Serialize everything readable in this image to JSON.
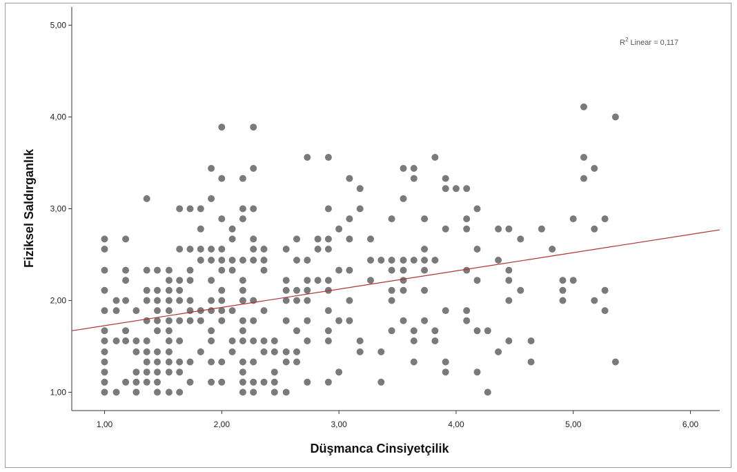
{
  "chart_data": {
    "type": "scatter",
    "title": "",
    "xlabel": "Düşmanca Cinsiyetçilik",
    "ylabel": "Fiziksel Saldırganlık",
    "xlim": [
      0.72,
      6.25
    ],
    "ylim": [
      0.8,
      5.2
    ],
    "xticks": [
      "1,00",
      "2,00",
      "3,00",
      "4,00",
      "5,00",
      "6,00"
    ],
    "yticks": [
      "1,00",
      "2,00",
      "3,00",
      "4,00",
      "5,00"
    ],
    "xtick_values": [
      1,
      2,
      3,
      4,
      5,
      6
    ],
    "ytick_values": [
      1,
      2,
      3,
      4,
      5
    ],
    "grid": false,
    "point_color": "#7a7a7a",
    "fit_line": {
      "label": "R² Linear = 0,117",
      "label_base": "R",
      "label_sup": "2",
      "label_rest": " Linear = 0,117",
      "color": "#b03030",
      "x": [
        0.72,
        6.25
      ],
      "y": [
        1.67,
        2.77
      ]
    },
    "points": [
      [
        1.0,
        1.0
      ],
      [
        1.0,
        1.11
      ],
      [
        1.0,
        1.22
      ],
      [
        1.0,
        1.33
      ],
      [
        1.0,
        1.44
      ],
      [
        1.0,
        1.56
      ],
      [
        1.0,
        1.67
      ],
      [
        1.0,
        1.89
      ],
      [
        1.0,
        2.11
      ],
      [
        1.0,
        2.33
      ],
      [
        1.0,
        2.56
      ],
      [
        1.0,
        2.67
      ],
      [
        1.1,
        1.0
      ],
      [
        1.1,
        1.56
      ],
      [
        1.1,
        1.89
      ],
      [
        1.1,
        2.0
      ],
      [
        1.18,
        1.11
      ],
      [
        1.18,
        1.56
      ],
      [
        1.18,
        1.67
      ],
      [
        1.18,
        2.0
      ],
      [
        1.18,
        2.22
      ],
      [
        1.18,
        2.33
      ],
      [
        1.18,
        2.67
      ],
      [
        1.27,
        1.0
      ],
      [
        1.27,
        1.11
      ],
      [
        1.27,
        1.22
      ],
      [
        1.27,
        1.44
      ],
      [
        1.27,
        1.56
      ],
      [
        1.27,
        1.89
      ],
      [
        1.36,
        1.11
      ],
      [
        1.36,
        1.22
      ],
      [
        1.36,
        1.33
      ],
      [
        1.36,
        1.44
      ],
      [
        1.36,
        1.56
      ],
      [
        1.36,
        1.78
      ],
      [
        1.36,
        2.0
      ],
      [
        1.36,
        2.11
      ],
      [
        1.36,
        2.33
      ],
      [
        1.36,
        3.11
      ],
      [
        1.45,
        1.0
      ],
      [
        1.45,
        1.11
      ],
      [
        1.45,
        1.22
      ],
      [
        1.45,
        1.33
      ],
      [
        1.45,
        1.44
      ],
      [
        1.45,
        1.67
      ],
      [
        1.45,
        1.78
      ],
      [
        1.45,
        1.89
      ],
      [
        1.45,
        2.0
      ],
      [
        1.45,
        2.11
      ],
      [
        1.45,
        2.33
      ],
      [
        1.55,
        1.0
      ],
      [
        1.55,
        1.22
      ],
      [
        1.55,
        1.33
      ],
      [
        1.55,
        1.44
      ],
      [
        1.55,
        1.56
      ],
      [
        1.55,
        1.67
      ],
      [
        1.55,
        1.78
      ],
      [
        1.55,
        1.89
      ],
      [
        1.55,
        2.0
      ],
      [
        1.55,
        2.11
      ],
      [
        1.55,
        2.22
      ],
      [
        1.55,
        2.33
      ],
      [
        1.64,
        1.0
      ],
      [
        1.64,
        1.22
      ],
      [
        1.64,
        1.33
      ],
      [
        1.64,
        1.56
      ],
      [
        1.64,
        1.78
      ],
      [
        1.64,
        2.0
      ],
      [
        1.64,
        2.11
      ],
      [
        1.64,
        2.22
      ],
      [
        1.64,
        2.56
      ],
      [
        1.64,
        3.0
      ],
      [
        1.73,
        1.11
      ],
      [
        1.73,
        1.33
      ],
      [
        1.73,
        1.78
      ],
      [
        1.73,
        1.89
      ],
      [
        1.73,
        2.0
      ],
      [
        1.73,
        2.22
      ],
      [
        1.73,
        2.33
      ],
      [
        1.73,
        2.56
      ],
      [
        1.73,
        3.0
      ],
      [
        1.82,
        1.44
      ],
      [
        1.82,
        1.78
      ],
      [
        1.82,
        1.89
      ],
      [
        1.82,
        2.44
      ],
      [
        1.82,
        2.56
      ],
      [
        1.82,
        2.78
      ],
      [
        1.82,
        3.0
      ],
      [
        1.91,
        1.11
      ],
      [
        1.91,
        1.33
      ],
      [
        1.91,
        1.56
      ],
      [
        1.91,
        1.67
      ],
      [
        1.91,
        1.89
      ],
      [
        1.91,
        2.0
      ],
      [
        1.91,
        2.22
      ],
      [
        1.91,
        2.44
      ],
      [
        1.91,
        2.56
      ],
      [
        1.91,
        3.11
      ],
      [
        1.91,
        3.44
      ],
      [
        2.0,
        1.11
      ],
      [
        2.0,
        1.33
      ],
      [
        2.0,
        1.78
      ],
      [
        2.0,
        1.89
      ],
      [
        2.0,
        2.0
      ],
      [
        2.0,
        2.11
      ],
      [
        2.0,
        2.33
      ],
      [
        2.0,
        2.44
      ],
      [
        2.0,
        2.56
      ],
      [
        2.0,
        2.89
      ],
      [
        2.0,
        3.33
      ],
      [
        2.0,
        3.89
      ],
      [
        2.09,
        1.44
      ],
      [
        2.09,
        1.56
      ],
      [
        2.09,
        1.89
      ],
      [
        2.09,
        2.33
      ],
      [
        2.09,
        2.44
      ],
      [
        2.09,
        2.67
      ],
      [
        2.09,
        2.78
      ],
      [
        2.18,
        1.0
      ],
      [
        2.18,
        1.11
      ],
      [
        2.18,
        1.22
      ],
      [
        2.18,
        1.33
      ],
      [
        2.18,
        1.56
      ],
      [
        2.18,
        1.67
      ],
      [
        2.18,
        1.78
      ],
      [
        2.18,
        2.0
      ],
      [
        2.18,
        2.11
      ],
      [
        2.18,
        2.22
      ],
      [
        2.18,
        2.44
      ],
      [
        2.18,
        2.89
      ],
      [
        2.18,
        3.0
      ],
      [
        2.18,
        3.33
      ],
      [
        2.27,
        1.0
      ],
      [
        2.27,
        1.11
      ],
      [
        2.27,
        1.33
      ],
      [
        2.27,
        1.56
      ],
      [
        2.27,
        1.78
      ],
      [
        2.27,
        2.0
      ],
      [
        2.27,
        2.44
      ],
      [
        2.27,
        2.56
      ],
      [
        2.27,
        2.67
      ],
      [
        2.27,
        3.0
      ],
      [
        2.27,
        3.44
      ],
      [
        2.27,
        3.89
      ],
      [
        2.36,
        1.11
      ],
      [
        2.36,
        1.44
      ],
      [
        2.36,
        1.56
      ],
      [
        2.36,
        1.89
      ],
      [
        2.36,
        2.33
      ],
      [
        2.36,
        2.44
      ],
      [
        2.36,
        2.56
      ],
      [
        2.45,
        1.0
      ],
      [
        2.45,
        1.11
      ],
      [
        2.45,
        1.22
      ],
      [
        2.45,
        1.44
      ],
      [
        2.45,
        1.56
      ],
      [
        2.55,
        1.0
      ],
      [
        2.55,
        1.33
      ],
      [
        2.55,
        1.44
      ],
      [
        2.55,
        1.78
      ],
      [
        2.55,
        2.0
      ],
      [
        2.55,
        2.11
      ],
      [
        2.55,
        2.22
      ],
      [
        2.55,
        2.56
      ],
      [
        2.64,
        1.33
      ],
      [
        2.64,
        1.44
      ],
      [
        2.64,
        1.67
      ],
      [
        2.64,
        2.0
      ],
      [
        2.64,
        2.11
      ],
      [
        2.64,
        2.44
      ],
      [
        2.64,
        2.67
      ],
      [
        2.73,
        1.11
      ],
      [
        2.73,
        1.56
      ],
      [
        2.73,
        1.78
      ],
      [
        2.73,
        2.0
      ],
      [
        2.73,
        2.11
      ],
      [
        2.73,
        2.22
      ],
      [
        2.73,
        2.44
      ],
      [
        2.73,
        3.56
      ],
      [
        2.82,
        2.22
      ],
      [
        2.82,
        2.56
      ],
      [
        2.82,
        2.67
      ],
      [
        2.91,
        1.11
      ],
      [
        2.91,
        1.56
      ],
      [
        2.91,
        1.67
      ],
      [
        2.91,
        1.89
      ],
      [
        2.91,
        2.11
      ],
      [
        2.91,
        2.22
      ],
      [
        2.91,
        2.56
      ],
      [
        2.91,
        2.67
      ],
      [
        2.91,
        3.0
      ],
      [
        2.91,
        3.56
      ],
      [
        3.0,
        1.22
      ],
      [
        3.0,
        1.78
      ],
      [
        3.0,
        2.33
      ],
      [
        3.0,
        2.78
      ],
      [
        3.09,
        1.78
      ],
      [
        3.09,
        2.0
      ],
      [
        3.09,
        2.33
      ],
      [
        3.09,
        2.67
      ],
      [
        3.09,
        2.89
      ],
      [
        3.09,
        3.33
      ],
      [
        3.18,
        1.44
      ],
      [
        3.18,
        1.56
      ],
      [
        3.18,
        3.0
      ],
      [
        3.18,
        3.22
      ],
      [
        3.27,
        2.22
      ],
      [
        3.27,
        2.44
      ],
      [
        3.27,
        2.67
      ],
      [
        3.36,
        1.11
      ],
      [
        3.36,
        1.44
      ],
      [
        3.36,
        2.44
      ],
      [
        3.45,
        1.67
      ],
      [
        3.45,
        2.0
      ],
      [
        3.45,
        2.11
      ],
      [
        3.45,
        2.33
      ],
      [
        3.45,
        2.44
      ],
      [
        3.45,
        2.89
      ],
      [
        3.55,
        1.78
      ],
      [
        3.55,
        2.11
      ],
      [
        3.55,
        2.22
      ],
      [
        3.55,
        2.33
      ],
      [
        3.55,
        2.44
      ],
      [
        3.55,
        3.11
      ],
      [
        3.55,
        3.44
      ],
      [
        3.64,
        1.33
      ],
      [
        3.64,
        1.56
      ],
      [
        3.64,
        1.67
      ],
      [
        3.64,
        2.44
      ],
      [
        3.64,
        3.33
      ],
      [
        3.64,
        3.44
      ],
      [
        3.73,
        1.78
      ],
      [
        3.73,
        2.11
      ],
      [
        3.73,
        2.33
      ],
      [
        3.73,
        2.44
      ],
      [
        3.73,
        2.56
      ],
      [
        3.73,
        2.89
      ],
      [
        3.82,
        1.56
      ],
      [
        3.82,
        1.67
      ],
      [
        3.82,
        2.44
      ],
      [
        3.82,
        3.56
      ],
      [
        3.91,
        1.22
      ],
      [
        3.91,
        1.33
      ],
      [
        3.91,
        1.89
      ],
      [
        3.91,
        2.78
      ],
      [
        3.91,
        3.22
      ],
      [
        3.91,
        3.33
      ],
      [
        4.0,
        3.22
      ],
      [
        4.09,
        1.78
      ],
      [
        4.09,
        1.89
      ],
      [
        4.09,
        2.33
      ],
      [
        4.09,
        2.78
      ],
      [
        4.09,
        2.89
      ],
      [
        4.09,
        3.22
      ],
      [
        4.18,
        1.22
      ],
      [
        4.18,
        1.67
      ],
      [
        4.18,
        2.22
      ],
      [
        4.18,
        2.56
      ],
      [
        4.18,
        3.0
      ],
      [
        4.27,
        1.0
      ],
      [
        4.27,
        1.67
      ],
      [
        4.36,
        1.44
      ],
      [
        4.36,
        2.44
      ],
      [
        4.36,
        2.78
      ],
      [
        4.45,
        1.56
      ],
      [
        4.45,
        2.0
      ],
      [
        4.45,
        2.22
      ],
      [
        4.45,
        2.33
      ],
      [
        4.45,
        2.78
      ],
      [
        4.55,
        2.11
      ],
      [
        4.55,
        2.67
      ],
      [
        4.64,
        1.33
      ],
      [
        4.64,
        1.56
      ],
      [
        4.73,
        2.78
      ],
      [
        4.82,
        2.56
      ],
      [
        4.91,
        2.0
      ],
      [
        4.91,
        2.11
      ],
      [
        4.91,
        2.22
      ],
      [
        5.0,
        2.22
      ],
      [
        5.0,
        2.89
      ],
      [
        5.09,
        3.33
      ],
      [
        5.09,
        3.56
      ],
      [
        5.09,
        4.11
      ],
      [
        5.18,
        2.0
      ],
      [
        5.18,
        2.78
      ],
      [
        5.18,
        3.44
      ],
      [
        5.27,
        1.89
      ],
      [
        5.27,
        2.11
      ],
      [
        5.27,
        2.89
      ],
      [
        5.36,
        1.33
      ],
      [
        5.36,
        4.0
      ]
    ]
  }
}
